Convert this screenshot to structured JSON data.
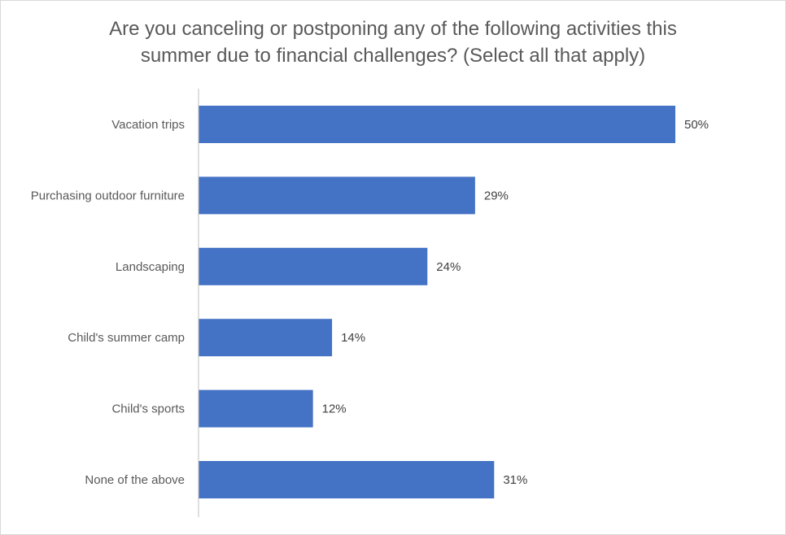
{
  "chart_data": {
    "type": "bar",
    "orientation": "horizontal",
    "title_lines": [
      "Are you canceling or postponing any of the following activities this",
      "summer due to financial challenges? (Select all that apply)"
    ],
    "categories": [
      "Vacation trips",
      "Purchasing outdoor furniture",
      "Landscaping",
      "Child's summer camp",
      "Child's sports",
      "None of the above"
    ],
    "values": [
      50,
      29,
      24,
      14,
      12,
      31
    ],
    "value_labels": [
      "50%",
      "29%",
      "24%",
      "14%",
      "12%",
      "31%"
    ],
    "unit": "%",
    "xlim": [
      0,
      50
    ],
    "grid": false,
    "legend": "none",
    "bar_color": "#4472C4"
  }
}
